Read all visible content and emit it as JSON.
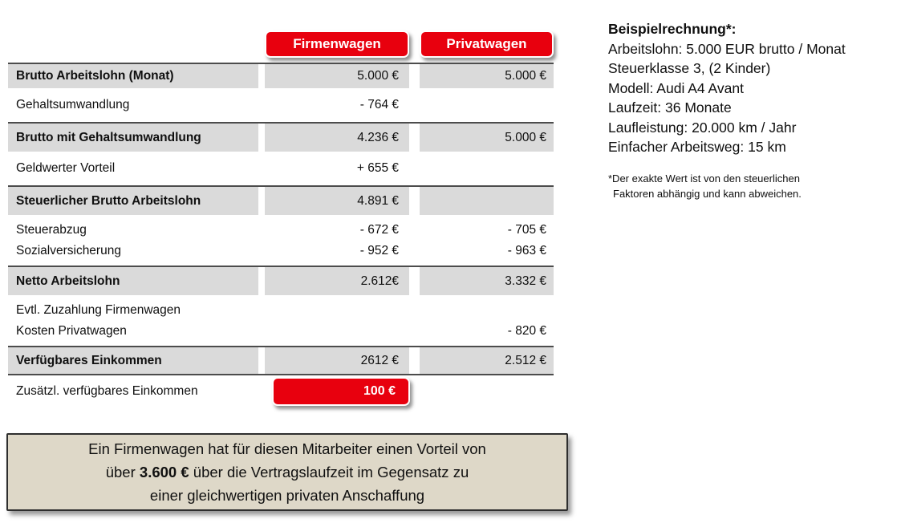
{
  "columns": {
    "firmenwagen": "Firmenwagen",
    "privatwagen": "Privatwagen"
  },
  "table": {
    "rows": [
      {
        "label": "Brutto Arbeitslohn (Monat)",
        "firmenwagen": "5.000 €",
        "privatwagen": "5.000 €"
      },
      {
        "label": "Gehaltsumwandlung",
        "firmenwagen": "- 764 €"
      },
      {
        "label": "Brutto mit Gehaltsumwandlung",
        "firmenwagen": "4.236 €",
        "privatwagen": "5.000 €"
      },
      {
        "label": "Geldwerter Vorteil",
        "firmenwagen": "+ 655 €"
      },
      {
        "label": "Steuerlicher Brutto Arbeitslohn",
        "firmenwagen": "4.891 €"
      },
      {
        "label": "Steuerabzug",
        "label2": "Sozialversicherung",
        "firmenwagen": "- 672 €",
        "firmenwagen2": "- 952 €",
        "privatwagen": "- 705 €",
        "privatwagen2": "- 963 €"
      },
      {
        "label": "Netto Arbeitslohn",
        "firmenwagen": "2.612€",
        "privatwagen": "3.332 €"
      },
      {
        "label": "Evtl. Zuzahlung Firmenwagen",
        "label2": "Kosten Privatwagen",
        "privatwagen2": "- 820 €"
      },
      {
        "label": "Verfügbares Einkommen",
        "firmenwagen": "2612 €",
        "privatwagen": "2.512 €"
      },
      {
        "label": "Zusätzl. verfügbares Einkommen",
        "firmenwagen_highlight": "100 €"
      }
    ]
  },
  "sidebar": {
    "title": "Beispielrechnung*:",
    "lines": [
      "Arbeitslohn: 5.000 EUR brutto / Monat",
      "Steuerklasse 3, (2 Kinder)",
      "Modell: Audi A4 Avant",
      "Laufzeit: 36 Monate",
      "Laufleistung: 20.000 km / Jahr",
      "Einfacher Arbeitsweg: 15 km"
    ],
    "footnote": [
      "*Der exakte Wert ist von den steuerlichen",
      "Faktoren abhängig und kann abweichen."
    ]
  },
  "summary": {
    "line1": "Ein Firmenwagen hat für diesen Mitarbeiter einen Vorteil von",
    "line2_pre": "über ",
    "line2_bold": "3.600 €",
    "line2_post": " über die Vertragslaufzeit im Gegensatz zu",
    "line3": "einer gleichwertigen privaten Anschaffung"
  },
  "colors": {
    "accent_red": "#e8000e",
    "row_gray": "#dadada",
    "row_border": "#4c4c4c",
    "summary_bg": "#ded8c8"
  }
}
